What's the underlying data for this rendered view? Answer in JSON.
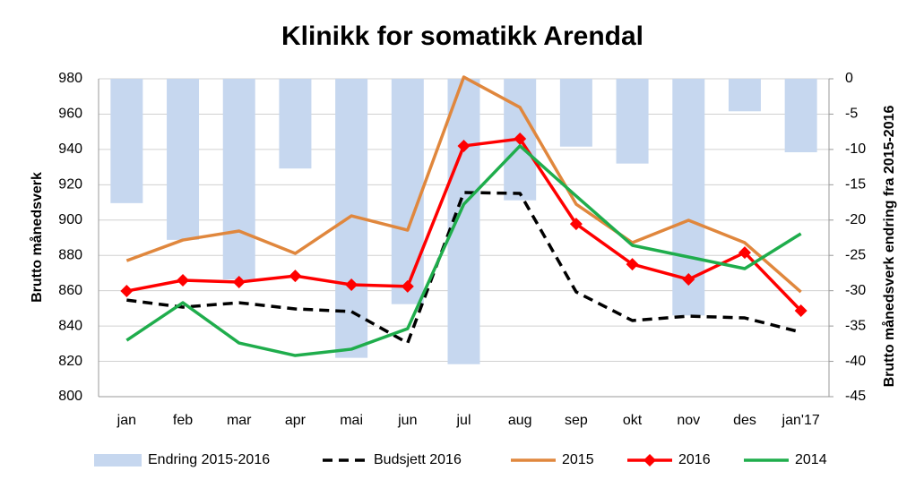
{
  "chart_data": {
    "type": "line",
    "title": "Klinikk for somatikk Arendal",
    "y_label": "Brutto månedsverk",
    "y2_label": "Brutto månedsverk endring fra 2015-2016",
    "categories": [
      "jan",
      "feb",
      "mar",
      "apr",
      "mai",
      "jun",
      "jul",
      "aug",
      "sep",
      "okt",
      "nov",
      "des",
      "jan'17"
    ],
    "ylim": [
      800,
      980
    ],
    "yticks": [
      800,
      820,
      840,
      860,
      880,
      900,
      920,
      940,
      960,
      980
    ],
    "y2lim": [
      -45,
      0
    ],
    "y2ticks": [
      -45,
      -40,
      -35,
      -30,
      -25,
      -20,
      -15,
      -10,
      -5,
      0
    ],
    "grid": true,
    "legend": "bottom",
    "series": [
      {
        "name": "Endring 2015-2016",
        "type": "bar",
        "axis": "y2",
        "color": "#c6d7ef",
        "values": [
          -17.6,
          -22.8,
          -28.4,
          -12.7,
          -39.5,
          -31.9,
          -40.4,
          -17.2,
          -9.6,
          -12.0,
          -33.5,
          -4.6,
          -10.4
        ]
      },
      {
        "name": "Budsjett 2016",
        "type": "line",
        "dash": true,
        "color": "#000000",
        "values": [
          854.7,
          850.7,
          853.2,
          849.7,
          848.2,
          830.4,
          915.6,
          915.1,
          859.3,
          843.1,
          845.6,
          844.6,
          836.5
        ]
      },
      {
        "name": "2015",
        "type": "line",
        "color": "#e0873d",
        "values": [
          877.0,
          888.7,
          893.8,
          881.1,
          902.4,
          894.3,
          981.0,
          963.8,
          909.0,
          887.2,
          899.9,
          887.2,
          859.3
        ]
      },
      {
        "name": "2016",
        "type": "line",
        "marker": "diamond",
        "color": "#ff0000",
        "values": [
          859.8,
          865.9,
          864.9,
          868.4,
          863.4,
          862.4,
          942.0,
          946.0,
          897.8,
          875.0,
          866.4,
          881.6,
          848.7
        ]
      },
      {
        "name": "2014",
        "type": "line",
        "color": "#1fad4c",
        "values": [
          831.9,
          853.2,
          830.4,
          823.3,
          826.9,
          838.5,
          909.0,
          942.0,
          913.6,
          885.7,
          879.1,
          872.5,
          892.3
        ]
      }
    ]
  }
}
